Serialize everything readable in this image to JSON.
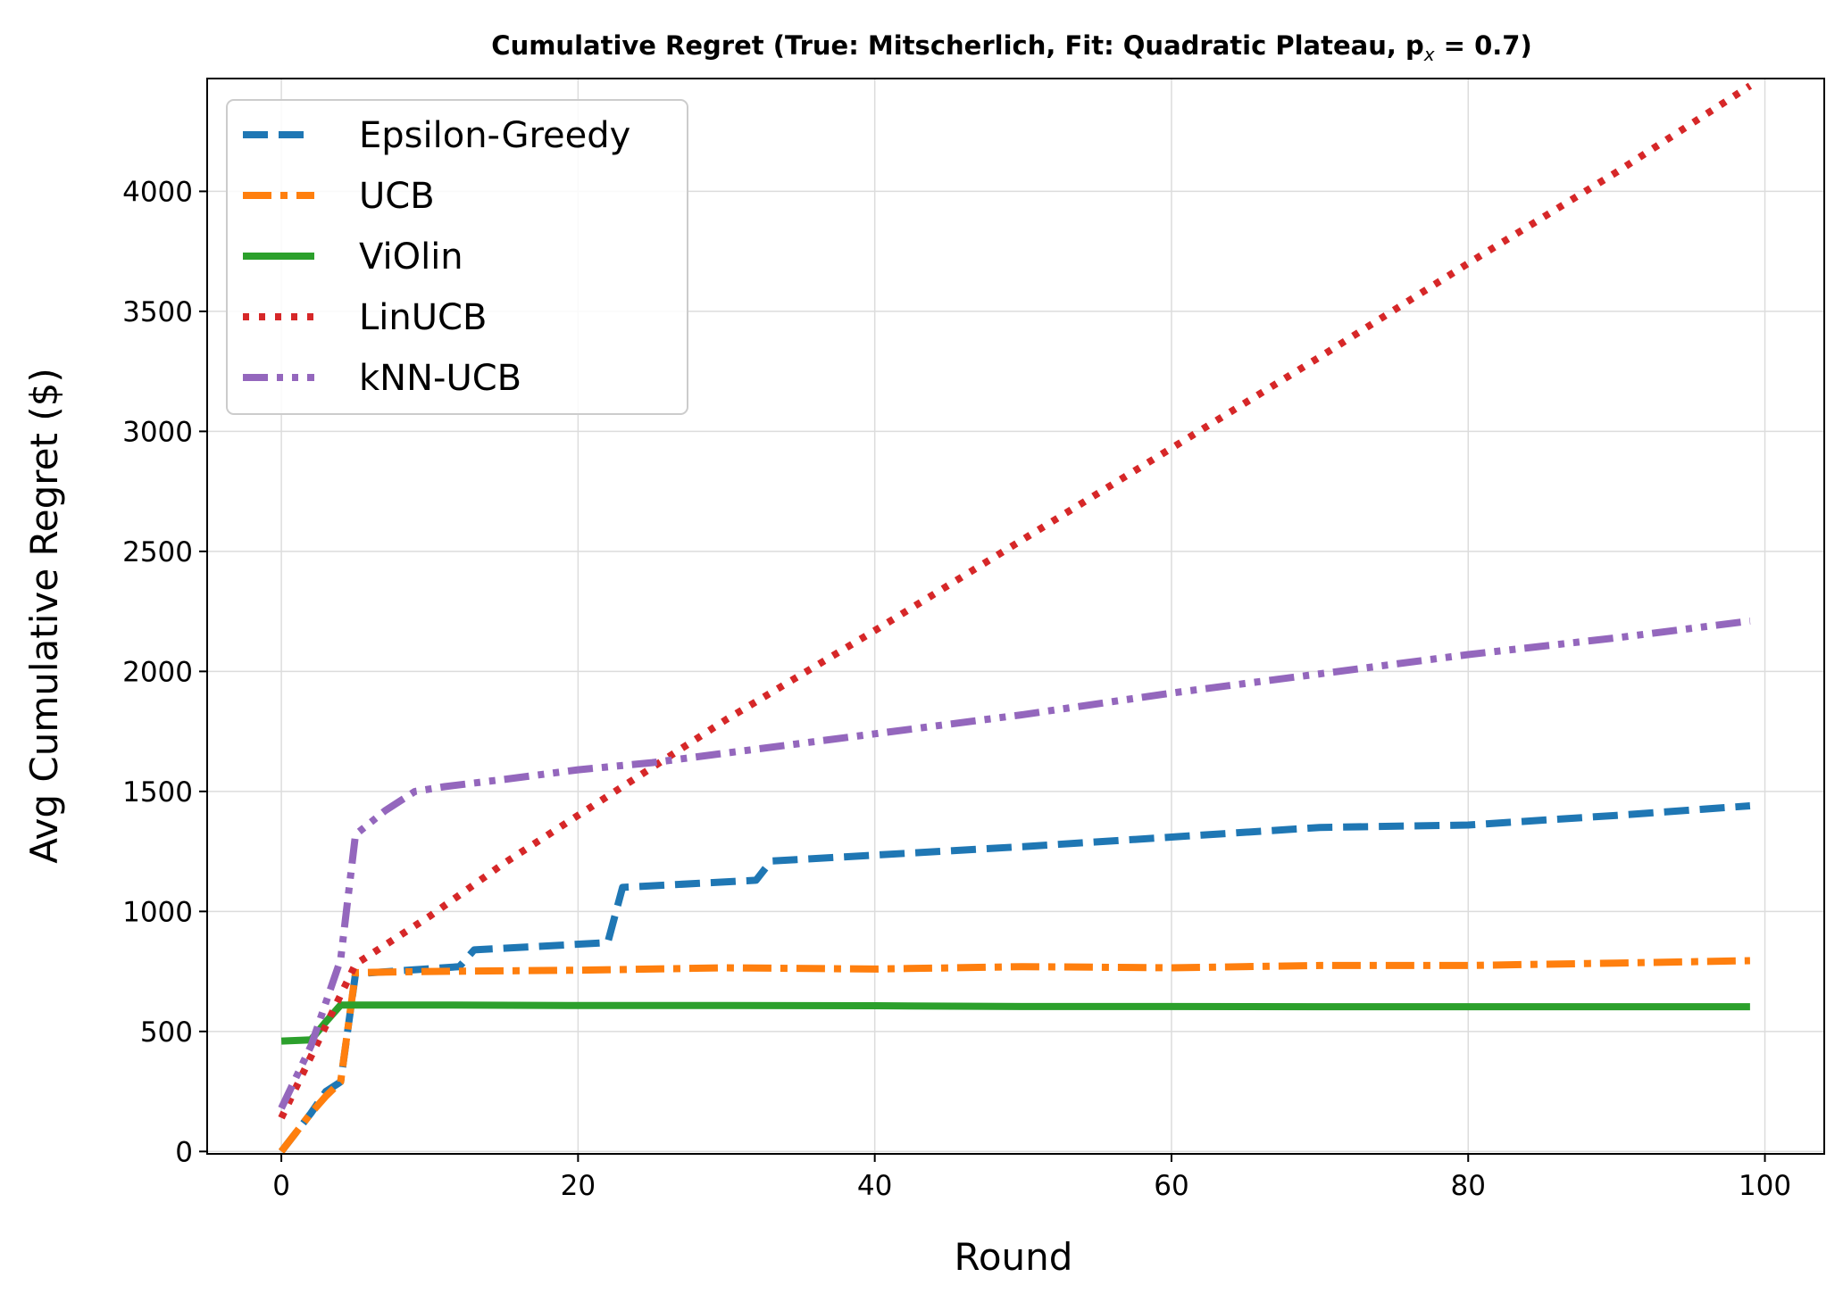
{
  "chart_data": {
    "type": "line",
    "title": "Cumulative Regret (True: Mitscherlich, Fit: Quadratic Plateau, p",
    "title_subscript": "x",
    "title_suffix": " = 0.7)",
    "xlabel": "Round",
    "ylabel": "Avg Cumulative Regret ($)",
    "xlim": [
      -5,
      104
    ],
    "ylim": [
      -10,
      4470
    ],
    "xticks": [
      0,
      20,
      40,
      60,
      80,
      100
    ],
    "yticks": [
      0,
      500,
      1000,
      1500,
      2000,
      2500,
      3000,
      3500,
      4000
    ],
    "grid": true,
    "legend_position": "top-left",
    "series": [
      {
        "name": "Epsilon-Greedy",
        "color": "#1f77b4",
        "style": "dashed",
        "x": [
          0,
          2,
          3,
          4,
          5,
          12,
          13,
          22,
          23,
          32,
          33,
          50,
          60,
          70,
          80,
          90,
          99
        ],
        "values": [
          0,
          160,
          250,
          290,
          740,
          770,
          840,
          870,
          1100,
          1130,
          1210,
          1270,
          1310,
          1350,
          1360,
          1400,
          1440
        ]
      },
      {
        "name": "UCB",
        "color": "#ff7f0e",
        "style": "dashdot",
        "x": [
          0,
          2,
          3,
          4,
          5,
          10,
          20,
          30,
          40,
          50,
          60,
          70,
          80,
          90,
          99
        ],
        "values": [
          0,
          160,
          230,
          290,
          745,
          750,
          755,
          765,
          760,
          770,
          765,
          775,
          775,
          785,
          795
        ]
      },
      {
        "name": "ViOlin",
        "color": "#2ca02c",
        "style": "solid",
        "x": [
          0,
          2,
          3,
          4,
          5,
          10,
          20,
          30,
          40,
          50,
          60,
          70,
          80,
          90,
          99
        ],
        "values": [
          460,
          465,
          540,
          610,
          610,
          610,
          608,
          608,
          607,
          604,
          604,
          603,
          603,
          603,
          603
        ]
      },
      {
        "name": "LinUCB",
        "color": "#d62728",
        "style": "dotted",
        "x": [
          0,
          5,
          10,
          15,
          20,
          25,
          30,
          40,
          50,
          60,
          70,
          80,
          90,
          99
        ],
        "values": [
          140,
          780,
          980,
          1200,
          1400,
          1600,
          1800,
          2170,
          2550,
          2930,
          3310,
          3700,
          4080,
          4440
        ]
      },
      {
        "name": "kNN-UCB",
        "color": "#9467bd",
        "style": "dashdotdot",
        "x": [
          0,
          2,
          4,
          5,
          7,
          9,
          11,
          15,
          20,
          25,
          30,
          40,
          50,
          60,
          70,
          80,
          90,
          99
        ],
        "values": [
          180,
          440,
          800,
          1320,
          1420,
          1500,
          1520,
          1550,
          1590,
          1620,
          1660,
          1740,
          1820,
          1910,
          1990,
          2070,
          2140,
          2210
        ]
      }
    ]
  }
}
